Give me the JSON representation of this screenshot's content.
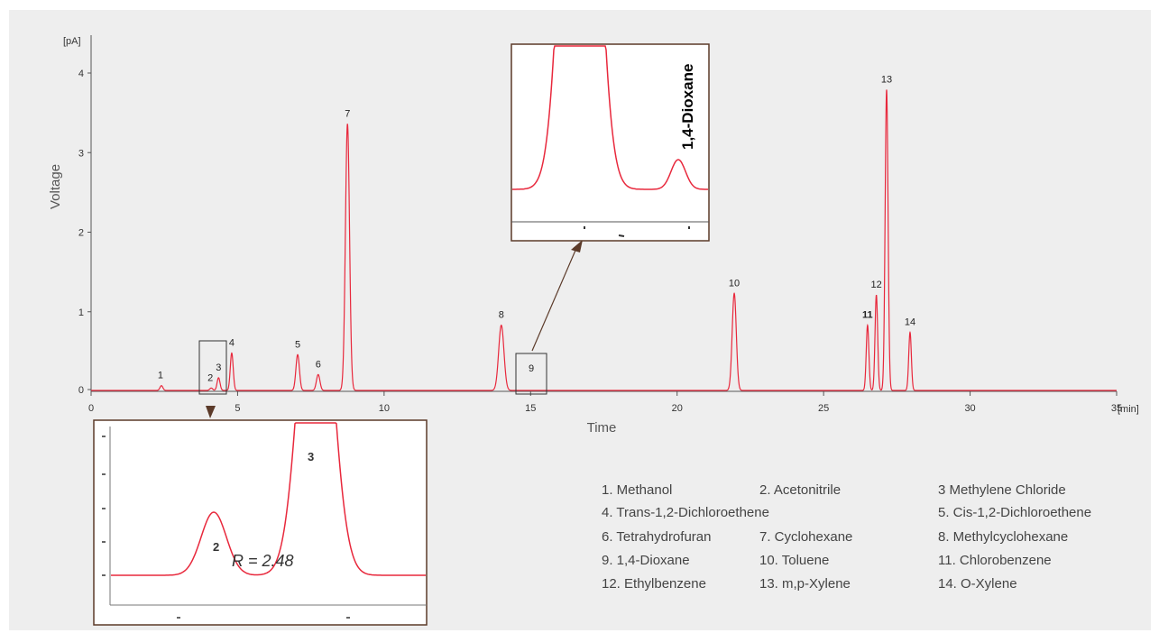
{
  "chart_data": {
    "type": "line",
    "xlabel": "Time",
    "ylabel": "Voltage",
    "x_unit": "[min]",
    "y_unit": "[pA]",
    "xlim": [
      0,
      35
    ],
    "ylim": [
      0,
      4.4
    ],
    "x_ticks": [
      0,
      5,
      10,
      15,
      20,
      25,
      30,
      35
    ],
    "y_ticks": [
      0,
      1,
      2,
      3,
      4
    ],
    "line_color": "#e8283c",
    "peaks": [
      {
        "label": "1",
        "rt": 2.4,
        "height": 0.06,
        "width": 0.05
      },
      {
        "label": "2",
        "rt": 4.1,
        "height": 0.03,
        "width": 0.05
      },
      {
        "label": "3",
        "rt": 4.35,
        "height": 0.16,
        "width": 0.05
      },
      {
        "label": "4",
        "rt": 4.8,
        "height": 0.47,
        "width": 0.05
      },
      {
        "label": "5",
        "rt": 7.05,
        "height": 0.45,
        "width": 0.06
      },
      {
        "label": "6",
        "rt": 7.75,
        "height": 0.2,
        "width": 0.06
      },
      {
        "label": "7",
        "rt": 8.75,
        "height": 3.35,
        "width": 0.07
      },
      {
        "label": "8",
        "rt": 14.0,
        "height": 0.82,
        "width": 0.09
      },
      {
        "label": "10",
        "rt": 21.95,
        "height": 1.22,
        "width": 0.07
      },
      {
        "label": "11",
        "rt": 26.5,
        "height": 0.82,
        "width": 0.045
      },
      {
        "label": "12",
        "rt": 26.8,
        "height": 1.2,
        "width": 0.045
      },
      {
        "label": "13",
        "rt": 27.15,
        "height": 3.78,
        "width": 0.05
      },
      {
        "label": "14",
        "rt": 27.95,
        "height": 0.73,
        "width": 0.045
      }
    ],
    "marker_peak": {
      "label": "9",
      "rt": 15.1
    },
    "inset_top": {
      "title": "1,4-Dioxane"
    },
    "inset_bottom": {
      "annotation": "R = 2.48",
      "peak_labels": [
        "2",
        "3"
      ]
    }
  },
  "legend": [
    {
      "text": "1. Methanol"
    },
    {
      "text": "2. Acetonitrile"
    },
    {
      "text": "3 Methylene Chloride"
    },
    {
      "text": "4. Trans-1,2-Dichloroethene"
    },
    {
      "text": "5. Cis-1,2-Dichloroethene"
    },
    {
      "text": "6. Tetrahydrofuran"
    },
    {
      "text": "7. Cyclohexane"
    },
    {
      "text": "8. Methylcyclohexane"
    },
    {
      "text": "9. 1,4-Dioxane"
    },
    {
      "text": "10. Toluene"
    },
    {
      "text": "11. Chlorobenzene"
    },
    {
      "text": "12. Ethylbenzene"
    },
    {
      "text": "13. m,p-Xylene"
    },
    {
      "text": "14. O-Xylene"
    }
  ]
}
